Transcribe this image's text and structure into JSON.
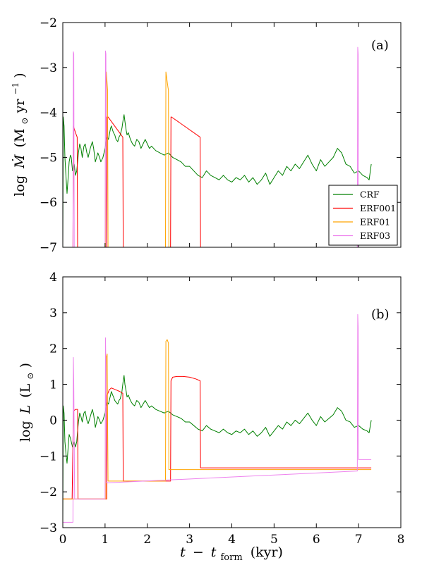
{
  "chart_data": [
    {
      "type": "line",
      "panel_label": "(a)",
      "ylabel_prefix": "log",
      "ylabel_var": "Ṁ",
      "ylabel_unit_open": "(M",
      "ylabel_unit_sub": "⊙",
      "ylabel_unit_mid": " yr",
      "ylabel_unit_sup": "−1",
      "ylabel_unit_close": ")",
      "xlim": [
        0,
        8
      ],
      "ylim": [
        -7,
        -2
      ],
      "yticks": [
        -7,
        -6,
        -5,
        -4,
        -3,
        -2
      ],
      "ytick_labels": [
        "−7",
        "−6",
        "−5",
        "−4",
        "−3",
        "−2"
      ],
      "grid": false,
      "legend": {
        "placement": "lower-right",
        "entries": [
          "CRF",
          "ERF001",
          "ERF01",
          "ERF03"
        ]
      },
      "series": [
        {
          "name": "CRF",
          "color": "#008000",
          "x": [
            0.0,
            0.01,
            0.03,
            0.05,
            0.08,
            0.1,
            0.13,
            0.15,
            0.18,
            0.2,
            0.23,
            0.27,
            0.3,
            0.33,
            0.35,
            0.37,
            0.4,
            0.43,
            0.46,
            0.5,
            0.53,
            0.57,
            0.6,
            0.65,
            0.7,
            0.73,
            0.77,
            0.8,
            0.83,
            0.87,
            0.9,
            0.95,
            1.0,
            1.03,
            1.05,
            1.08,
            1.1,
            1.13,
            1.15,
            1.18,
            1.2,
            1.23,
            1.26,
            1.3,
            1.33,
            1.36,
            1.4,
            1.43,
            1.45,
            1.47,
            1.5,
            1.52,
            1.55,
            1.6,
            1.65,
            1.7,
            1.75,
            1.8,
            1.85,
            1.9,
            1.95,
            2.0,
            2.05,
            2.1,
            2.2,
            2.3,
            2.4,
            2.5,
            2.6,
            2.7,
            2.8,
            2.9,
            3.0,
            3.1,
            3.2,
            3.3,
            3.4,
            3.5,
            3.6,
            3.7,
            3.8,
            3.9,
            4.0,
            4.1,
            4.2,
            4.3,
            4.4,
            4.5,
            4.6,
            4.7,
            4.8,
            4.9,
            5.0,
            5.1,
            5.2,
            5.3,
            5.4,
            5.5,
            5.6,
            5.7,
            5.8,
            5.9,
            6.0,
            6.1,
            6.2,
            6.3,
            6.4,
            6.5,
            6.6,
            6.7,
            6.8,
            6.9,
            7.0,
            7.1,
            7.2,
            7.25,
            7.3
          ],
          "y": [
            -7.0,
            -4.1,
            -4.3,
            -5.0,
            -5.5,
            -5.8,
            -5.4,
            -5.1,
            -4.95,
            -5.0,
            -5.3,
            -5.15,
            -5.4,
            -5.3,
            -5.1,
            -4.9,
            -4.7,
            -4.8,
            -5.0,
            -4.75,
            -4.7,
            -4.9,
            -5.0,
            -4.8,
            -4.65,
            -4.8,
            -5.1,
            -5.0,
            -4.9,
            -5.0,
            -5.1,
            -5.0,
            -4.8,
            -4.6,
            -4.55,
            -4.6,
            -4.5,
            -4.35,
            -4.3,
            -4.4,
            -4.45,
            -4.5,
            -4.6,
            -4.65,
            -4.55,
            -4.5,
            -4.35,
            -4.15,
            -4.05,
            -4.2,
            -4.4,
            -4.5,
            -4.45,
            -4.6,
            -4.7,
            -4.75,
            -4.6,
            -4.65,
            -4.8,
            -4.7,
            -4.6,
            -4.7,
            -4.8,
            -4.75,
            -4.85,
            -4.9,
            -4.95,
            -4.9,
            -5.0,
            -5.05,
            -5.1,
            -5.2,
            -5.2,
            -5.3,
            -5.4,
            -5.45,
            -5.3,
            -5.4,
            -5.45,
            -5.5,
            -5.4,
            -5.5,
            -5.55,
            -5.45,
            -5.5,
            -5.4,
            -5.55,
            -5.45,
            -5.6,
            -5.5,
            -5.35,
            -5.6,
            -5.45,
            -5.3,
            -5.4,
            -5.2,
            -5.3,
            -5.15,
            -5.25,
            -5.1,
            -4.95,
            -5.15,
            -5.3,
            -5.05,
            -5.2,
            -5.1,
            -5.0,
            -4.8,
            -4.9,
            -5.15,
            -5.2,
            -5.35,
            -5.3,
            -5.4,
            -5.45,
            -5.5,
            -5.15
          ]
        },
        {
          "name": "ERF001",
          "color": "#ff0000",
          "x": [
            0.0,
            0.24,
            0.25,
            0.3,
            0.34,
            0.35,
            0.36,
            1.04,
            1.05,
            1.06,
            1.07,
            1.42,
            1.43,
            2.55,
            2.56,
            2.57,
            3.25,
            3.26,
            7.3
          ],
          "y": [
            -7.0,
            -7.0,
            -4.3,
            -4.45,
            -4.55,
            -7.0,
            -7.0,
            -7.0,
            -4.1,
            -4.1,
            -4.1,
            -4.55,
            -7.0,
            -7.0,
            -4.1,
            -4.1,
            -4.55,
            -7.0,
            -7.0
          ]
        },
        {
          "name": "ERF01",
          "color": "#ffa500",
          "x": [
            0.0,
            1.02,
            1.03,
            1.06,
            1.07,
            2.43,
            2.44,
            2.49,
            2.5,
            2.51,
            7.3
          ],
          "y": [
            -7.0,
            -7.0,
            -3.1,
            -3.5,
            -7.0,
            -7.0,
            -3.1,
            -3.45,
            -3.5,
            -7.0,
            -7.0
          ]
        },
        {
          "name": "ERF03",
          "color": "#ee82ee",
          "x": [
            0.0,
            0.24,
            0.25,
            0.26,
            0.27,
            1.0,
            1.01,
            1.02,
            1.03,
            6.97,
            6.98,
            6.99,
            7.0,
            7.3
          ],
          "y": [
            -7.0,
            -7.0,
            -2.65,
            -2.7,
            -7.0,
            -7.0,
            -2.63,
            -2.7,
            -7.0,
            -7.0,
            -2.55,
            -2.7,
            -7.0,
            -7.0
          ]
        }
      ]
    },
    {
      "type": "line",
      "panel_label": "(b)",
      "ylabel_prefix": "log",
      "ylabel_var": "L",
      "ylabel_unit_open": "(L",
      "ylabel_unit_sub": "⊙",
      "ylabel_unit_close": ")",
      "xlabel_var": "t",
      "xlabel_minus": "−",
      "xlabel_t": "t",
      "xlabel_sub": "form",
      "xlabel_unit": "(kyr)",
      "xlim": [
        0,
        8
      ],
      "ylim": [
        -3,
        4
      ],
      "xticks": [
        0,
        1,
        2,
        3,
        4,
        5,
        6,
        7,
        8
      ],
      "xtick_labels": [
        "0",
        "1",
        "2",
        "3",
        "4",
        "5",
        "6",
        "7",
        "8"
      ],
      "yticks": [
        -3,
        -2,
        -1,
        0,
        1,
        2,
        3,
        4
      ],
      "ytick_labels": [
        "−3",
        "−2",
        "−1",
        "0",
        "1",
        "2",
        "3",
        "4"
      ],
      "grid": false,
      "series": [
        {
          "name": "CRF",
          "color": "#008000",
          "x": [
            0.0,
            0.01,
            0.03,
            0.05,
            0.08,
            0.1,
            0.13,
            0.15,
            0.18,
            0.2,
            0.23,
            0.27,
            0.3,
            0.33,
            0.35,
            0.37,
            0.4,
            0.43,
            0.46,
            0.5,
            0.53,
            0.57,
            0.6,
            0.65,
            0.7,
            0.73,
            0.77,
            0.8,
            0.83,
            0.87,
            0.9,
            0.95,
            1.0,
            1.03,
            1.05,
            1.08,
            1.1,
            1.13,
            1.15,
            1.18,
            1.2,
            1.23,
            1.26,
            1.3,
            1.33,
            1.36,
            1.4,
            1.43,
            1.45,
            1.47,
            1.5,
            1.52,
            1.55,
            1.6,
            1.65,
            1.7,
            1.75,
            1.8,
            1.85,
            1.9,
            1.95,
            2.0,
            2.05,
            2.1,
            2.2,
            2.3,
            2.4,
            2.5,
            2.6,
            2.7,
            2.8,
            2.9,
            3.0,
            3.1,
            3.2,
            3.3,
            3.4,
            3.5,
            3.6,
            3.7,
            3.8,
            3.9,
            4.0,
            4.1,
            4.2,
            4.3,
            4.4,
            4.5,
            4.6,
            4.7,
            4.8,
            4.9,
            5.0,
            5.1,
            5.2,
            5.3,
            5.4,
            5.5,
            5.6,
            5.7,
            5.8,
            5.9,
            6.0,
            6.1,
            6.2,
            6.3,
            6.4,
            6.5,
            6.6,
            6.7,
            6.8,
            6.9,
            7.0,
            7.1,
            7.2,
            7.25,
            7.3
          ],
          "y": [
            -2.85,
            0.4,
            0.2,
            -0.6,
            -1.0,
            -1.2,
            -0.7,
            -0.4,
            -0.5,
            -0.6,
            -0.75,
            -0.6,
            -0.75,
            -0.6,
            -0.3,
            -0.05,
            0.2,
            0.1,
            -0.05,
            0.2,
            0.25,
            0.0,
            -0.1,
            0.1,
            0.3,
            0.15,
            -0.2,
            -0.05,
            0.1,
            0.0,
            -0.1,
            0.0,
            0.2,
            0.4,
            0.5,
            0.45,
            0.55,
            0.7,
            0.8,
            0.7,
            0.65,
            0.55,
            0.5,
            0.45,
            0.55,
            0.6,
            0.8,
            1.1,
            1.25,
            1.0,
            0.8,
            0.65,
            0.7,
            0.55,
            0.45,
            0.4,
            0.55,
            0.5,
            0.35,
            0.45,
            0.55,
            0.45,
            0.35,
            0.4,
            0.3,
            0.25,
            0.2,
            0.25,
            0.15,
            0.1,
            0.05,
            -0.05,
            -0.05,
            -0.15,
            -0.25,
            -0.3,
            -0.15,
            -0.25,
            -0.3,
            -0.35,
            -0.25,
            -0.35,
            -0.4,
            -0.3,
            -0.35,
            -0.25,
            -0.4,
            -0.3,
            -0.45,
            -0.35,
            -0.2,
            -0.45,
            -0.3,
            -0.15,
            -0.25,
            -0.05,
            -0.15,
            0.0,
            -0.1,
            0.05,
            0.2,
            0.0,
            -0.15,
            0.1,
            -0.05,
            0.05,
            0.15,
            0.35,
            0.25,
            0.0,
            -0.05,
            -0.2,
            -0.15,
            -0.25,
            -0.3,
            -0.35,
            0.0
          ]
        },
        {
          "name": "ERF001",
          "color": "#ff0000",
          "x": [
            0.0,
            0.18,
            0.2,
            0.22,
            0.25,
            0.3,
            0.35,
            0.36,
            0.37,
            1.04,
            1.05,
            1.1,
            1.15,
            1.25,
            1.35,
            1.42,
            1.43,
            2.55,
            2.56,
            2.6,
            2.7,
            2.85,
            3.0,
            3.15,
            3.25,
            3.26,
            7.3
          ],
          "y": [
            -2.2,
            -2.2,
            -2.2,
            -2.2,
            0.25,
            0.3,
            0.3,
            -2.2,
            -2.2,
            -2.2,
            0.7,
            0.85,
            0.9,
            0.85,
            0.8,
            0.75,
            -1.7,
            -1.7,
            1.1,
            1.2,
            1.22,
            1.22,
            1.2,
            1.15,
            1.1,
            -1.33,
            -1.33
          ]
        },
        {
          "name": "ERF01",
          "color": "#ffa500",
          "x": [
            0.0,
            0.24,
            0.25,
            1.02,
            1.03,
            1.05,
            1.07,
            1.08,
            2.43,
            2.44,
            2.47,
            2.5,
            2.51,
            7.3
          ],
          "y": [
            -2.2,
            -2.2,
            -2.2,
            -2.2,
            1.75,
            1.85,
            -1.7,
            -1.7,
            -1.7,
            2.2,
            2.25,
            2.15,
            -1.38,
            -1.38
          ]
        },
        {
          "name": "ERF03",
          "color": "#ee82ee",
          "x": [
            0.0,
            0.24,
            0.25,
            0.26,
            0.28,
            0.3,
            1.0,
            1.01,
            1.02,
            1.03,
            1.05,
            6.97,
            6.98,
            6.99,
            7.0,
            7.01,
            7.3
          ],
          "y": [
            -2.85,
            -2.85,
            1.75,
            1.0,
            -2.2,
            -2.2,
            -2.2,
            2.3,
            1.5,
            -1.75,
            -1.75,
            -1.42,
            2.95,
            2.6,
            -1.1,
            -1.1,
            -1.1
          ]
        }
      ]
    }
  ]
}
